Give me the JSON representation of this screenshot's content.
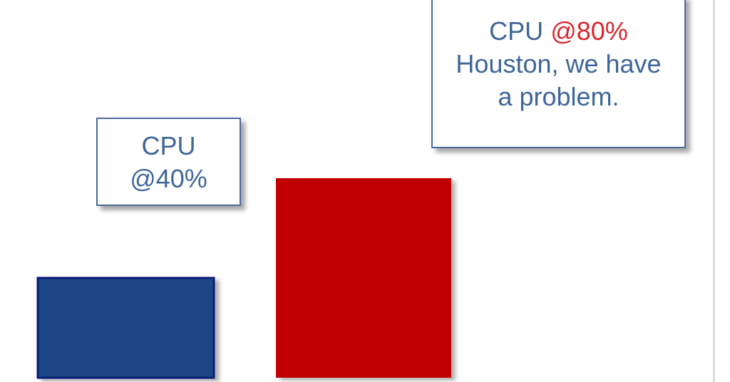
{
  "chart_data": {
    "type": "bar",
    "categories": [
      "CPU @40%",
      "CPU @80%"
    ],
    "values": [
      40,
      80
    ],
    "colors": [
      "#1f4784",
      "#c00000"
    ],
    "ylim": [
      0,
      100
    ],
    "grid": false,
    "legend": "none",
    "annotations": [
      {
        "target": 0,
        "prefix": "CPU",
        "value_text": "@40%",
        "message": ""
      },
      {
        "target": 1,
        "prefix": "CPU",
        "value_text": "@80%",
        "message_line1": "Houston, we have",
        "message_line2": "a problem."
      }
    ]
  }
}
